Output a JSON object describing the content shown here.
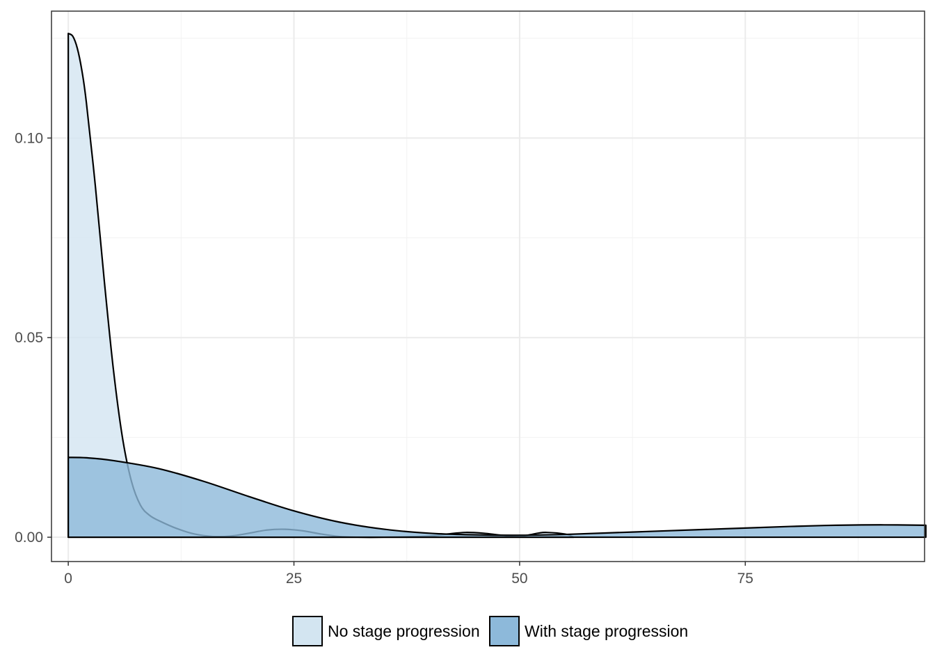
{
  "chart_data": {
    "type": "area",
    "title": "",
    "xlabel": "",
    "ylabel": "",
    "xlim": [
      -1.86,
      94.86
    ],
    "ylim": [
      -0.00609,
      0.13179
    ],
    "x_ticks": [
      0,
      25,
      50,
      75
    ],
    "x_tick_labels": [
      "0",
      "25",
      "50",
      "75"
    ],
    "y_ticks": [
      0.0,
      0.05,
      0.1
    ],
    "y_tick_labels": [
      "0.00",
      "0.05",
      "0.10"
    ],
    "grid": true,
    "legend_position": "bottom",
    "series": [
      {
        "name": "No stage progression",
        "color": "#d3e5f1",
        "x": [
          0,
          0.5,
          1.0,
          1.5,
          2,
          3,
          4,
          5,
          6,
          7,
          8,
          9,
          10,
          12,
          14,
          16,
          18,
          20,
          22,
          24,
          26,
          28,
          30,
          32,
          35,
          40,
          42,
          44,
          46,
          48,
          50,
          52,
          53,
          55,
          56
        ],
        "values": [
          0.1262,
          0.1255,
          0.1225,
          0.117,
          0.109,
          0.088,
          0.064,
          0.042,
          0.025,
          0.014,
          0.008,
          0.0055,
          0.0042,
          0.0022,
          0.0008,
          0.0002,
          0.0003,
          0.001,
          0.0018,
          0.002,
          0.0016,
          0.0008,
          0.0002,
          0.0,
          0.0,
          0.0003,
          0.0008,
          0.0012,
          0.001,
          0.0005,
          0.0002,
          0.001,
          0.0012,
          0.0008,
          0.0
        ]
      },
      {
        "name": "With stage progression",
        "color": "#8db9da",
        "x": [
          0,
          2,
          5,
          10,
          15,
          20,
          25,
          30,
          35,
          40,
          45,
          50,
          55,
          60,
          65,
          70,
          75,
          80,
          85,
          90,
          95
        ],
        "values": [
          0.02,
          0.0199,
          0.0192,
          0.0172,
          0.014,
          0.0102,
          0.0066,
          0.0038,
          0.002,
          0.001,
          0.0006,
          0.0005,
          0.0007,
          0.0011,
          0.0015,
          0.0019,
          0.0023,
          0.0027,
          0.003,
          0.0031,
          0.003
        ]
      }
    ]
  }
}
